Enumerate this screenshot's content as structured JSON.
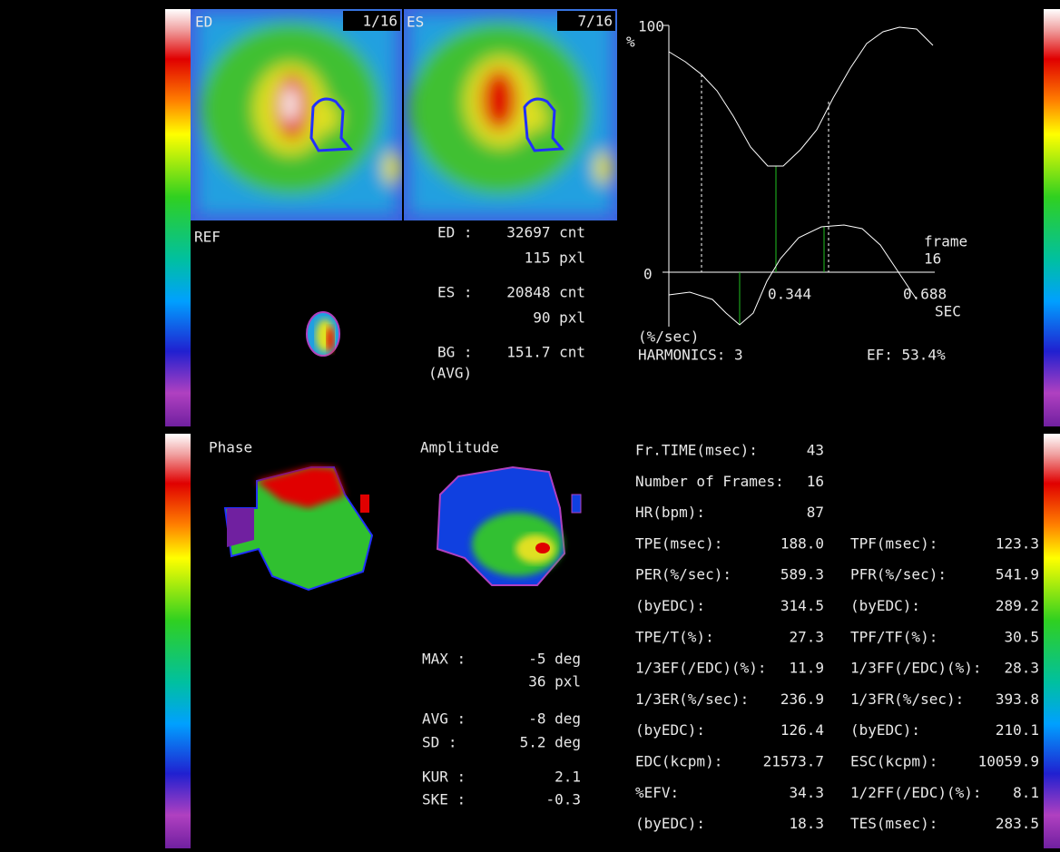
{
  "images": {
    "ed": {
      "label": "ED",
      "frame": "1/16"
    },
    "es": {
      "label": "ES",
      "frame": "7/16"
    },
    "ref": "REF",
    "phase": "Phase",
    "amplitude": "Amplitude"
  },
  "roi_stats": [
    {
      "label": "ED :",
      "value": "32697 cnt"
    },
    {
      "value": "115 pxl"
    },
    {
      "label": "ES :",
      "value": "20848 cnt"
    },
    {
      "value": "90 pxl"
    },
    {
      "label": "BG :",
      "value": "151.7 cnt"
    },
    {
      "label": "(AVG)"
    }
  ],
  "curve": {
    "y_top": "100",
    "y_unit": "%",
    "y_zero": "0",
    "x_ticks": [
      "0.344",
      "0.688"
    ],
    "x_unit": "SEC",
    "rate_unit": "(%/sec)",
    "frame_label": "frame",
    "frame_value": "16",
    "harmonics": "HARMONICS: 3",
    "ef": "EF: 53.4%"
  },
  "phase_stats": [
    {
      "label": "MAX :",
      "value": "-5 deg"
    },
    {
      "value": "36 pxl"
    },
    {
      "label": "AVG :",
      "value": "-8 deg"
    },
    {
      "label": "SD  :",
      "value": "5.2 deg"
    },
    {
      "label": "KUR :",
      "value": "2.1"
    },
    {
      "label": "SKE :",
      "value": "-0.3"
    }
  ],
  "parameters": {
    "single": [
      [
        "Fr.TIME(msec):",
        "43"
      ],
      [
        "Number of Frames:",
        "16"
      ],
      [
        "HR(bpm):",
        "87"
      ]
    ],
    "pairs": [
      [
        "TPE(msec):",
        "188.0",
        "TPF(msec):",
        "123.3"
      ],
      [
        "PER(%/sec):",
        "589.3",
        "PFR(%/sec):",
        "541.9"
      ],
      [
        "(byEDC):",
        "314.5",
        "(byEDC):",
        "289.2"
      ],
      [
        "TPE/T(%):",
        "27.3",
        "TPF/TF(%):",
        "30.5"
      ],
      [
        "1/3EF(/EDC)(%):",
        "11.9",
        "1/3FF(/EDC)(%):",
        "28.3"
      ],
      [
        "1/3ER(%/sec):",
        "236.9",
        "1/3FR(%/sec):",
        "393.8"
      ],
      [
        "(byEDC):",
        "126.4",
        "(byEDC):",
        "210.1"
      ],
      [
        "EDC(kcpm):",
        "21573.7",
        "ESC(kcpm):",
        "10059.9"
      ],
      [
        "%EFV:",
        "34.3",
        "1/2FF(/EDC)(%):",
        "8.1"
      ],
      [
        "(byEDC):",
        "18.3",
        "TES(msec):",
        "283.5"
      ]
    ]
  }
}
